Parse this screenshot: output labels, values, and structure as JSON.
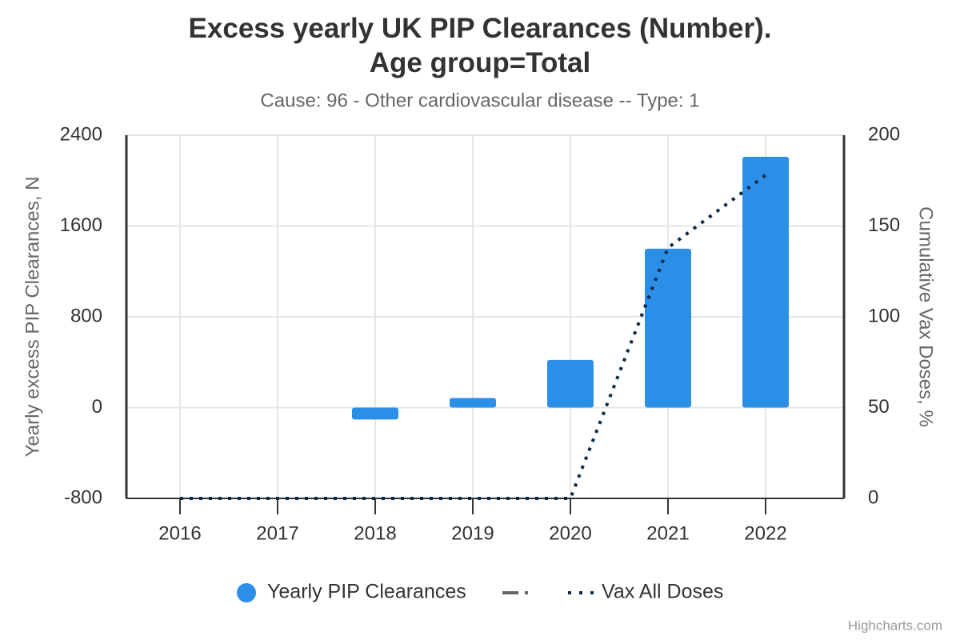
{
  "chart_data": {
    "type": "bar",
    "title": "Excess yearly UK PIP Clearances (Number). Age group=Total",
    "subtitle": "Cause: 96 - Other cardiovascular disease -- Type: 1",
    "y_label": "Yearly excess PIP Clearances, N",
    "y2_label": "Cumulative Vax Doses, %",
    "categories": [
      "2016",
      "2017",
      "2018",
      "2019",
      "2020",
      "2021",
      "2022"
    ],
    "series": [
      {
        "name": "Yearly PIP Clearances",
        "type": "bar",
        "color": "#2b8fe8",
        "values": [
          0,
          0,
          -105,
          85,
          420,
          1400,
          2210
        ]
      },
      {
        "name": "Vax All Doses",
        "type": "line",
        "axis": "y2",
        "color": "#0d2a4a",
        "values": [
          0,
          0,
          0,
          0,
          0,
          138,
          178
        ]
      }
    ],
    "ylim": [
      -800,
      2400
    ],
    "yticks": [
      -800,
      0,
      800,
      1600,
      2400
    ],
    "y2lim": [
      0,
      200
    ],
    "y2ticks": [
      0,
      50,
      100,
      150,
      200
    ],
    "grid": true,
    "legend": "bottom",
    "credits": "Highcharts.com"
  }
}
